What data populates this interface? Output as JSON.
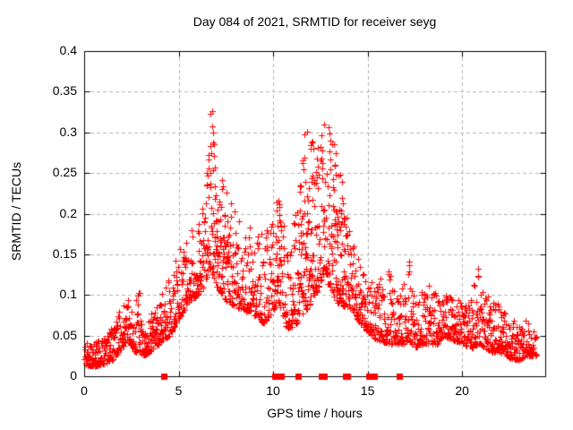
{
  "chart_data": {
    "type": "scatter",
    "title": "Day 084 of 2021, SRMTID for receiver seyg",
    "xlabel": "GPS time / hours",
    "ylabel": "SRMTID / TECUs",
    "xlim": [
      0,
      24.4
    ],
    "ylim": [
      0,
      0.4
    ],
    "xticks": [
      0,
      5,
      10,
      15,
      20
    ],
    "xtick_labels": [
      "0",
      "5",
      "10",
      "15",
      "20"
    ],
    "yticks": [
      0,
      0.05,
      0.1,
      0.15,
      0.2,
      0.25,
      0.3,
      0.35,
      0.4
    ],
    "ytick_labels": [
      "0",
      "0.05",
      "0.1",
      "0.15",
      "0.2",
      "0.25",
      "0.3",
      "0.35",
      "0.4"
    ],
    "grid": true,
    "grid_color": "#b4b4b4",
    "border_color": "#000000",
    "background_color": "#ffffff",
    "marker": "plus",
    "marker_size": 7,
    "marker_color": "#ff0000",
    "peaks": [
      {
        "time": 6.7,
        "value": 0.355
      },
      {
        "time": 12.6,
        "value": 0.325
      },
      {
        "time": 11.7,
        "value": 0.31
      },
      {
        "time": 13.0,
        "value": 0.31
      },
      {
        "time": 17.2,
        "value": 0.155
      },
      {
        "time": 20.9,
        "value": 0.14
      }
    ],
    "envelope": [
      [
        0.0,
        0.015,
        0.045
      ],
      [
        0.5,
        0.012,
        0.04
      ],
      [
        1.0,
        0.015,
        0.048
      ],
      [
        1.5,
        0.02,
        0.06
      ],
      [
        2.0,
        0.035,
        0.09
      ],
      [
        2.3,
        0.045,
        0.1
      ],
      [
        2.7,
        0.03,
        0.09
      ],
      [
        2.9,
        0.03,
        0.12
      ],
      [
        3.1,
        0.025,
        0.065
      ],
      [
        3.5,
        0.03,
        0.075
      ],
      [
        4.0,
        0.04,
        0.1
      ],
      [
        4.5,
        0.05,
        0.12
      ],
      [
        5.0,
        0.07,
        0.16
      ],
      [
        5.5,
        0.09,
        0.17
      ],
      [
        6.0,
        0.1,
        0.2
      ],
      [
        6.4,
        0.11,
        0.24
      ],
      [
        6.7,
        0.13,
        0.355
      ],
      [
        7.0,
        0.11,
        0.27
      ],
      [
        7.3,
        0.1,
        0.25
      ],
      [
        7.6,
        0.09,
        0.22
      ],
      [
        8.0,
        0.085,
        0.21
      ],
      [
        8.5,
        0.08,
        0.18
      ],
      [
        9.0,
        0.075,
        0.19
      ],
      [
        9.5,
        0.065,
        0.17
      ],
      [
        10.0,
        0.08,
        0.2
      ],
      [
        10.3,
        0.09,
        0.23
      ],
      [
        10.7,
        0.06,
        0.16
      ],
      [
        11.0,
        0.06,
        0.18
      ],
      [
        11.4,
        0.07,
        0.24
      ],
      [
        11.7,
        0.08,
        0.31
      ],
      [
        12.0,
        0.09,
        0.3
      ],
      [
        12.3,
        0.1,
        0.27
      ],
      [
        12.6,
        0.12,
        0.325
      ],
      [
        13.0,
        0.11,
        0.31
      ],
      [
        13.4,
        0.09,
        0.27
      ],
      [
        13.8,
        0.085,
        0.22
      ],
      [
        14.2,
        0.08,
        0.17
      ],
      [
        14.6,
        0.065,
        0.15
      ],
      [
        15.0,
        0.055,
        0.13
      ],
      [
        15.5,
        0.045,
        0.11
      ],
      [
        16.1,
        0.04,
        0.15
      ],
      [
        16.5,
        0.04,
        0.1
      ],
      [
        17.0,
        0.04,
        0.12
      ],
      [
        17.2,
        0.045,
        0.155
      ],
      [
        17.5,
        0.035,
        0.1
      ],
      [
        18.0,
        0.04,
        0.11
      ],
      [
        18.3,
        0.04,
        0.115
      ],
      [
        18.7,
        0.04,
        0.1
      ],
      [
        19.0,
        0.05,
        0.11
      ],
      [
        19.5,
        0.045,
        0.1
      ],
      [
        20.0,
        0.04,
        0.095
      ],
      [
        20.5,
        0.035,
        0.1
      ],
      [
        20.9,
        0.04,
        0.14
      ],
      [
        21.2,
        0.035,
        0.12
      ],
      [
        21.5,
        0.03,
        0.09
      ],
      [
        21.9,
        0.03,
        0.11
      ],
      [
        22.2,
        0.028,
        0.08
      ],
      [
        22.6,
        0.022,
        0.07
      ],
      [
        23.0,
        0.02,
        0.075
      ],
      [
        23.4,
        0.025,
        0.07
      ],
      [
        23.9,
        0.025,
        0.055
      ]
    ],
    "zero_marker_times": [
      4.2,
      10.1,
      10.4,
      11.3,
      12.55,
      12.7,
      13.85,
      13.95,
      15.05,
      15.35,
      16.7
    ],
    "sampling": {
      "t_start": 0.02,
      "t_end": 23.93,
      "step": 0.0125,
      "seed": 84,
      "skew": 2.0
    }
  }
}
